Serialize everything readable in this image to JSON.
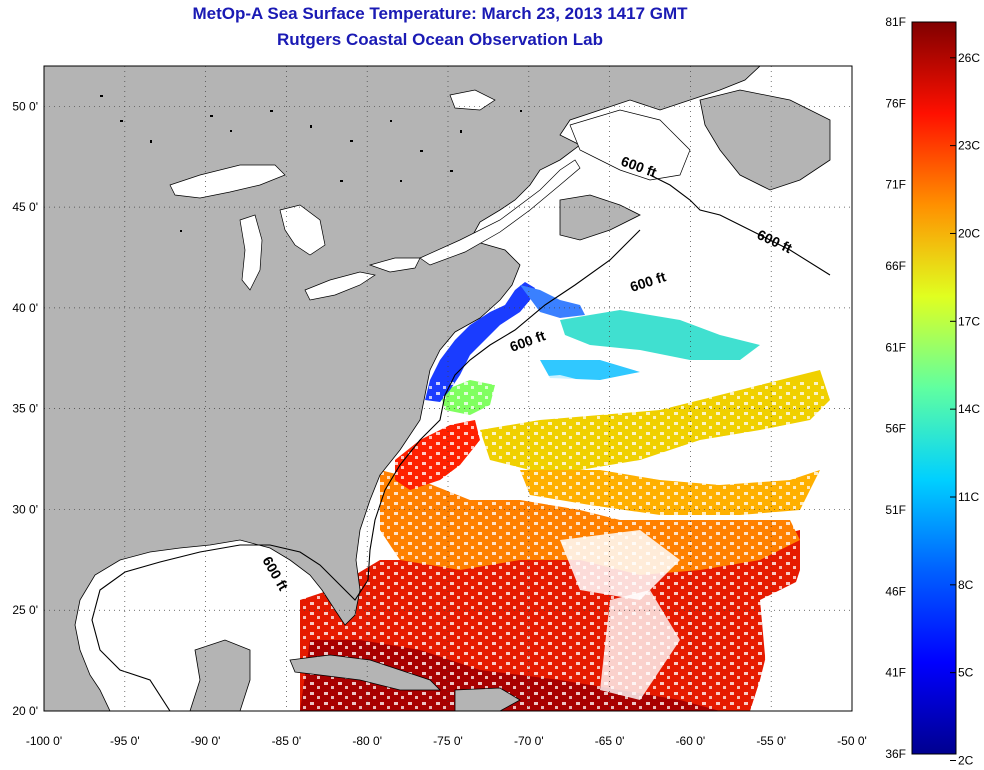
{
  "title": "MetOp-A Sea Surface Temperature:  March 23, 2013 1417 GMT",
  "subtitle": "Rutgers Coastal Ocean Observation Lab",
  "map": {
    "lon_range": [
      -100,
      -50
    ],
    "lat_range": [
      20,
      52
    ],
    "lon_ticks": [
      "-100 0'",
      "-95 0'",
      "-90 0'",
      "-85 0'",
      "-80 0'",
      "-75 0'",
      "-70 0'",
      "-65 0'",
      "-60 0'",
      "-55 0'",
      "-50 0'"
    ],
    "lat_ticks": [
      "20 0'",
      "25 0'",
      "30 0'",
      "35 0'",
      "40 0'",
      "45 0'",
      "50 0'"
    ],
    "gridlines": true,
    "isobath_labels": [
      "600 ft",
      "600 ft",
      "600 ft",
      "600 ft",
      "600 ft"
    ],
    "colors": {
      "land": "#b4b4b4",
      "water": "#ffffff"
    }
  },
  "colorbar": {
    "fahrenheit_labels": [
      "81F",
      "76F",
      "71F",
      "66F",
      "61F",
      "56F",
      "51F",
      "46F",
      "41F",
      "36F"
    ],
    "celsius_labels": [
      "26C",
      "23C",
      "20C",
      "17C",
      "14C",
      "11C",
      "8C",
      "5C",
      "2C"
    ],
    "colormap": "jet",
    "colors": [
      "#00008f",
      "#0000ff",
      "#0080ff",
      "#00ffff",
      "#80ff80",
      "#ffff00",
      "#ff8000",
      "#ff0000",
      "#800000"
    ]
  }
}
